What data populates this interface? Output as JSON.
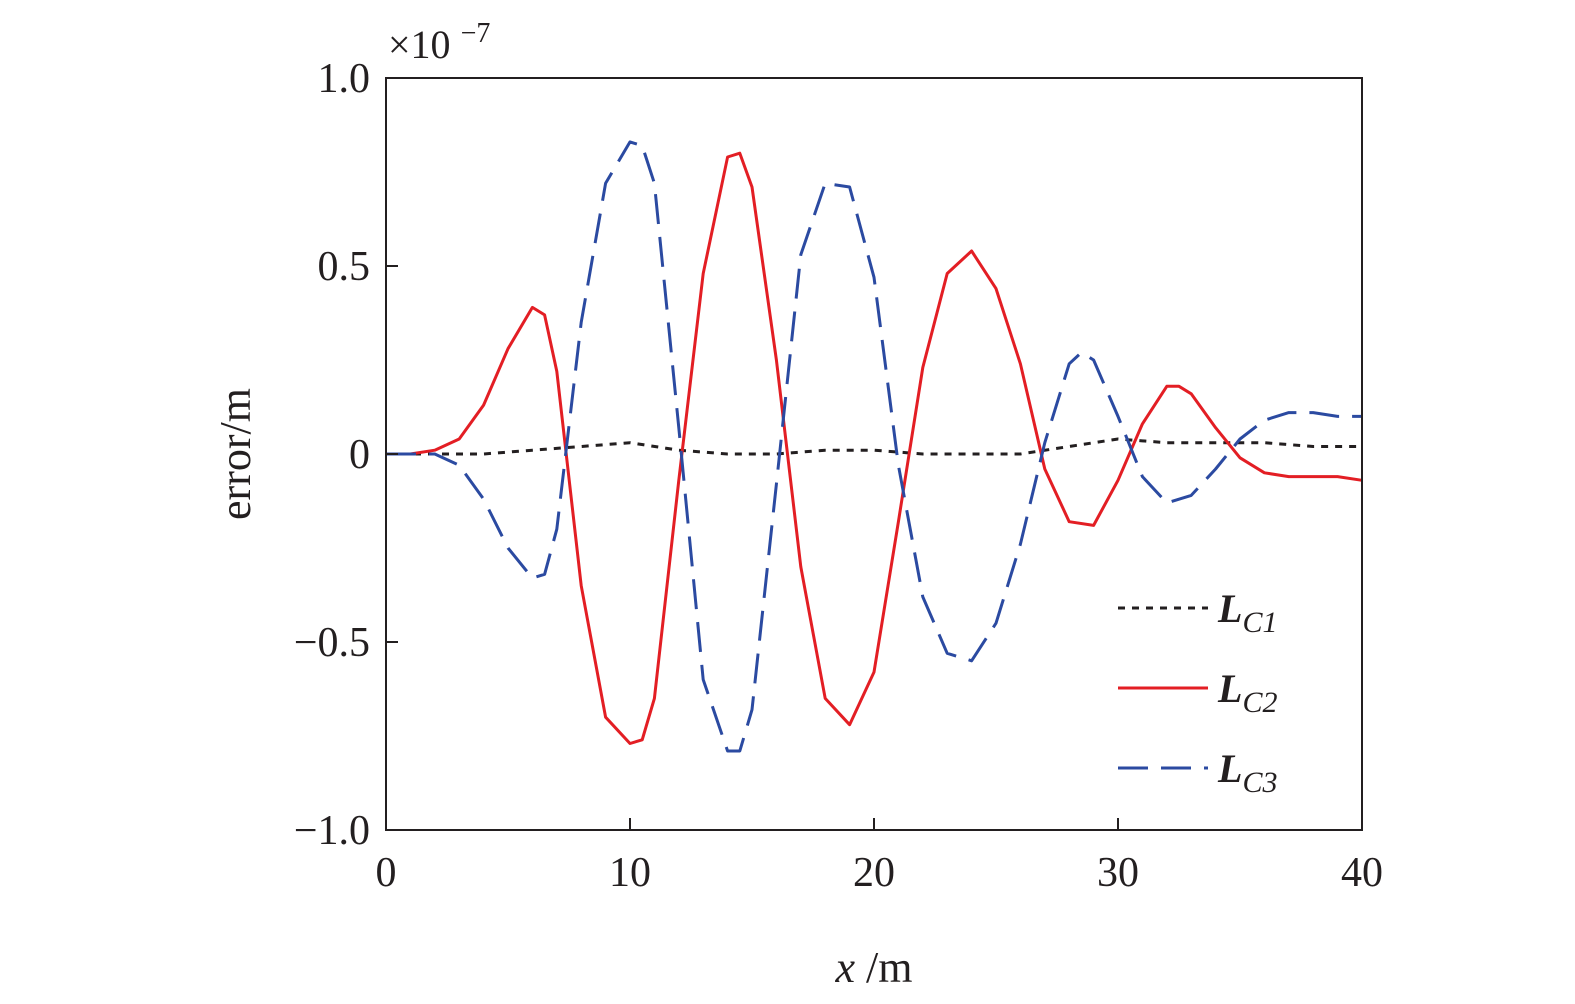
{
  "chart_data": {
    "type": "line",
    "xlabel_var": "x",
    "xlabel_unit": "/m",
    "ylabel": "error/m",
    "y_multiplier_base": "×10",
    "y_multiplier_exp": "−7",
    "xlim": [
      0,
      40
    ],
    "ylim": [
      -1.0,
      1.0
    ],
    "x_ticks": [
      0,
      10,
      20,
      30,
      40
    ],
    "x_tick_labels": [
      "0",
      "10",
      "20",
      "30",
      "40"
    ],
    "y_ticks": [
      1.0,
      0.5,
      0,
      -0.5,
      -1.0
    ],
    "y_tick_labels": [
      "1.0",
      "0.5",
      "0",
      "−0.5",
      "−1.0"
    ],
    "grid": false,
    "legend_position": "bottom-right",
    "series": [
      {
        "name": "LC1",
        "name_main": "L",
        "name_sub": "C1",
        "color": "#231f20",
        "dash": "short-dash",
        "x": [
          0,
          2,
          4,
          6,
          8,
          10,
          12,
          14,
          16,
          18,
          20,
          22,
          24,
          26,
          28,
          30,
          32,
          34,
          36,
          38,
          40
        ],
        "y": [
          0,
          0,
          0,
          0.01,
          0.02,
          0.03,
          0.01,
          0,
          0,
          0.01,
          0.01,
          0,
          0,
          0,
          0.02,
          0.04,
          0.03,
          0.03,
          0.03,
          0.02,
          0.02
        ]
      },
      {
        "name": "LC2",
        "name_main": "L",
        "name_sub": "C2",
        "color": "#e31e24",
        "dash": "solid",
        "x": [
          0,
          1,
          2,
          3,
          4,
          5,
          6,
          6.5,
          7,
          8,
          9,
          10,
          10.5,
          11,
          12,
          13,
          14,
          14.5,
          15,
          16,
          17,
          18,
          19,
          20,
          21,
          22,
          23,
          24,
          25,
          26,
          27,
          28,
          29,
          30,
          31,
          32,
          32.5,
          33,
          34,
          35,
          36,
          37,
          38,
          39,
          40
        ],
        "y": [
          0,
          0,
          0.01,
          0.04,
          0.13,
          0.28,
          0.39,
          0.37,
          0.22,
          -0.35,
          -0.7,
          -0.77,
          -0.76,
          -0.65,
          -0.07,
          0.48,
          0.79,
          0.8,
          0.71,
          0.25,
          -0.3,
          -0.65,
          -0.72,
          -0.58,
          -0.18,
          0.23,
          0.48,
          0.54,
          0.44,
          0.24,
          -0.04,
          -0.18,
          -0.19,
          -0.07,
          0.08,
          0.18,
          0.18,
          0.16,
          0.07,
          -0.01,
          -0.05,
          -0.06,
          -0.06,
          -0.06,
          -0.07
        ]
      },
      {
        "name": "LC3",
        "name_main": "L",
        "name_sub": "C3",
        "color": "#2b4aa1",
        "dash": "long-dash",
        "x": [
          0,
          1,
          2,
          3,
          4,
          5,
          6,
          6.5,
          7,
          8,
          9,
          10,
          10.5,
          11,
          12,
          13,
          14,
          14.5,
          15,
          16,
          17,
          18,
          19,
          20,
          21,
          22,
          23,
          24,
          25,
          26,
          27,
          28,
          28.5,
          29,
          30,
          31,
          32,
          33,
          34,
          35,
          36,
          37,
          38,
          39,
          40
        ],
        "y": [
          0,
          0,
          0,
          -0.03,
          -0.12,
          -0.25,
          -0.33,
          -0.32,
          -0.2,
          0.35,
          0.72,
          0.83,
          0.82,
          0.72,
          0.07,
          -0.6,
          -0.79,
          -0.79,
          -0.68,
          -0.08,
          0.53,
          0.72,
          0.71,
          0.47,
          -0.03,
          -0.38,
          -0.53,
          -0.55,
          -0.45,
          -0.24,
          0.03,
          0.24,
          0.27,
          0.25,
          0.1,
          -0.06,
          -0.13,
          -0.11,
          -0.04,
          0.04,
          0.09,
          0.11,
          0.11,
          0.1,
          0.1
        ]
      }
    ]
  }
}
